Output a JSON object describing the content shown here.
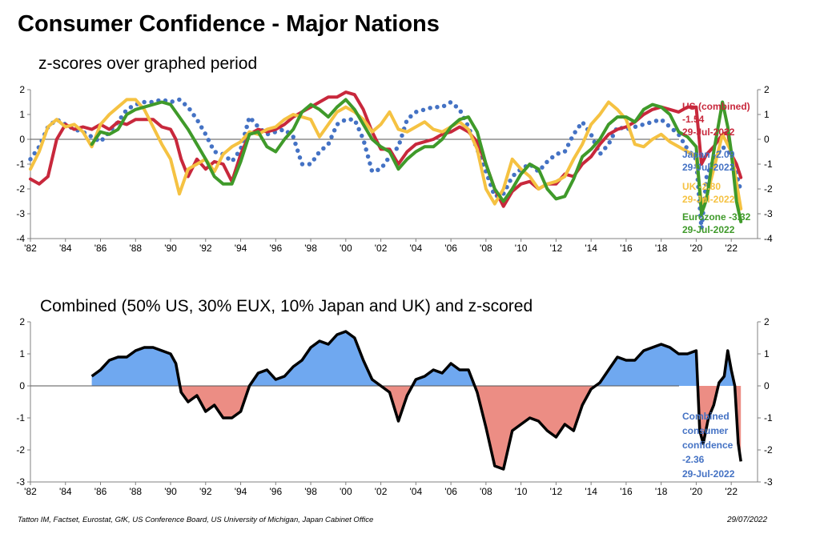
{
  "header": {
    "title": "Consumer Confidence - Major Nations"
  },
  "footer": {
    "source": "Tatton IM, Factset, Eurostat, GfK, US Conference Board, US University of Michigan, Japan Cabinet Office",
    "date": "29/07/2022"
  },
  "colors": {
    "us": "#c8283c",
    "japan": "#4472c4",
    "uk": "#f5c242",
    "eurozone": "#3f9a2a",
    "positive_fill": "#6fa8f0",
    "negative_fill": "#ec8d84",
    "combined_line": "#000000"
  },
  "chart_data": [
    {
      "type": "line",
      "title": "z-scores over graphed period",
      "x_tick_labels": [
        "'82",
        "'84",
        "'86",
        "'88",
        "'90",
        "'92",
        "'94",
        "'96",
        "'98",
        "'00",
        "'02",
        "'04",
        "'06",
        "'08",
        "'10",
        "'12",
        "'14",
        "'16",
        "'18",
        "'20",
        "'22"
      ],
      "xlim": [
        1982,
        2023.5
      ],
      "ylim": [
        -4,
        2
      ],
      "y_ticks": [
        2,
        1,
        0,
        -1,
        -2,
        -3,
        -4
      ],
      "zero_line": true,
      "series": [
        {
          "key": "us",
          "style": "solid",
          "label": "US (combined)",
          "value_label": "-1.54",
          "date_label": "29-Jul-2022",
          "x": [
            1982.0,
            1982.5,
            1983.0,
            1983.5,
            1984.0,
            1984.5,
            1985.0,
            1985.5,
            1986.0,
            1986.5,
            1987.0,
            1987.5,
            1988.0,
            1988.5,
            1989.0,
            1989.5,
            1990.0,
            1990.3,
            1990.6,
            1991.0,
            1991.5,
            1992.0,
            1992.5,
            1993.0,
            1993.5,
            1994.0,
            1994.5,
            1995.0,
            1995.5,
            1996.0,
            1996.5,
            1997.0,
            1997.5,
            1998.0,
            1998.5,
            1999.0,
            1999.5,
            2000.0,
            2000.5,
            2001.0,
            2001.5,
            2002.0,
            2002.5,
            2003.0,
            2003.5,
            2004.0,
            2004.5,
            2005.0,
            2005.5,
            2006.0,
            2006.5,
            2007.0,
            2007.5,
            2008.0,
            2008.5,
            2009.0,
            2009.5,
            2010.0,
            2010.5,
            2011.0,
            2011.5,
            2012.0,
            2012.5,
            2013.0,
            2013.5,
            2014.0,
            2014.5,
            2015.0,
            2015.5,
            2016.0,
            2016.5,
            2017.0,
            2017.5,
            2018.0,
            2018.5,
            2019.0,
            2019.5,
            2020.0,
            2020.3,
            2020.6,
            2021.0,
            2021.5,
            2021.8,
            2022.0,
            2022.3,
            2022.55
          ],
          "y": [
            -1.6,
            -1.8,
            -1.5,
            0.0,
            0.6,
            0.4,
            0.5,
            0.4,
            0.6,
            0.4,
            0.7,
            0.6,
            0.8,
            0.8,
            0.8,
            0.5,
            0.4,
            0.0,
            -0.8,
            -1.5,
            -0.8,
            -1.2,
            -0.9,
            -1.0,
            -1.7,
            -0.6,
            0.2,
            0.4,
            0.3,
            0.4,
            0.6,
            0.9,
            1.1,
            1.3,
            1.5,
            1.7,
            1.7,
            1.9,
            1.8,
            1.2,
            0.3,
            -0.4,
            -0.4,
            -1.0,
            -0.5,
            -0.2,
            -0.1,
            0.0,
            0.2,
            0.3,
            0.5,
            0.3,
            -0.1,
            -1.0,
            -2.0,
            -2.7,
            -2.1,
            -1.8,
            -1.7,
            -2.0,
            -1.8,
            -1.8,
            -1.4,
            -1.5,
            -1.0,
            -0.7,
            -0.2,
            0.2,
            0.4,
            0.5,
            0.7,
            1.0,
            1.2,
            1.3,
            1.2,
            1.1,
            1.3,
            1.3,
            -1.0,
            -0.6,
            -0.3,
            0.2,
            0.3,
            -0.6,
            -1.0,
            -1.54
          ]
        },
        {
          "key": "japan",
          "style": "dotted",
          "label": "Japan -2.09",
          "date_label": "29-Jul-2022",
          "x": [
            1982.0,
            1982.5,
            1983.0,
            1983.5,
            1984.0,
            1984.5,
            1985.0,
            1985.5,
            1986.0,
            1986.5,
            1987.0,
            1987.5,
            1988.0,
            1988.5,
            1989.0,
            1989.5,
            1990.0,
            1990.5,
            1991.0,
            1991.5,
            1992.0,
            1992.5,
            1993.0,
            1993.5,
            1994.0,
            1994.5,
            1995.0,
            1995.5,
            1996.0,
            1996.5,
            1997.0,
            1997.5,
            1998.0,
            1998.5,
            1999.0,
            1999.5,
            2000.0,
            2000.5,
            2001.0,
            2001.5,
            2002.0,
            2002.5,
            2003.0,
            2003.5,
            2004.0,
            2004.5,
            2005.0,
            2005.5,
            2006.0,
            2006.5,
            2007.0,
            2007.5,
            2008.0,
            2008.5,
            2009.0,
            2009.5,
            2010.0,
            2010.5,
            2011.0,
            2011.5,
            2012.0,
            2012.5,
            2013.0,
            2013.5,
            2014.0,
            2014.5,
            2015.0,
            2015.5,
            2016.0,
            2016.5,
            2017.0,
            2017.5,
            2018.0,
            2018.5,
            2019.0,
            2019.5,
            2020.0,
            2020.3,
            2020.6,
            2021.0,
            2021.5,
            2022.0,
            2022.55
          ],
          "y": [
            -0.8,
            -0.3,
            0.5,
            0.8,
            0.6,
            0.4,
            0.3,
            0.1,
            -0.1,
            0.3,
            0.7,
            1.2,
            1.4,
            1.5,
            1.5,
            1.6,
            1.5,
            1.6,
            1.3,
            0.8,
            0.2,
            -0.5,
            -0.6,
            -0.9,
            -0.4,
            0.9,
            0.5,
            0.2,
            0.3,
            0.4,
            0.1,
            -1.0,
            -1.0,
            -0.5,
            -0.2,
            0.6,
            0.8,
            0.8,
            0.0,
            -1.3,
            -1.2,
            -0.7,
            -0.3,
            0.8,
            1.1,
            1.2,
            1.3,
            1.3,
            1.5,
            1.2,
            0.5,
            -0.4,
            -1.3,
            -2.3,
            -2.2,
            -1.5,
            -1.2,
            -1.0,
            -1.3,
            -0.9,
            -0.6,
            -0.5,
            0.2,
            0.7,
            0.2,
            -0.6,
            -0.2,
            0.5,
            0.4,
            0.5,
            0.6,
            0.7,
            0.8,
            0.5,
            0.2,
            -0.4,
            -0.8,
            -3.6,
            -1.5,
            -0.8,
            -0.3,
            -0.6,
            -2.09
          ]
        },
        {
          "key": "uk",
          "style": "solid",
          "label": "UK -2.80",
          "date_label": "29-Jul-2022",
          "x": [
            1982.0,
            1982.5,
            1983.0,
            1983.5,
            1984.0,
            1984.5,
            1985.0,
            1985.5,
            1986.0,
            1986.5,
            1987.0,
            1987.5,
            1988.0,
            1988.5,
            1989.0,
            1989.5,
            1990.0,
            1990.5,
            1991.0,
            1991.5,
            1992.0,
            1992.5,
            1993.0,
            1993.5,
            1994.0,
            1994.5,
            1995.0,
            1995.5,
            1996.0,
            1996.5,
            1997.0,
            1997.5,
            1998.0,
            1998.5,
            1999.0,
            1999.5,
            2000.0,
            2000.5,
            2001.0,
            2001.5,
            2002.0,
            2002.5,
            2003.0,
            2003.5,
            2004.0,
            2004.5,
            2005.0,
            2005.5,
            2006.0,
            2006.5,
            2007.0,
            2007.5,
            2008.0,
            2008.5,
            2009.0,
            2009.5,
            2010.0,
            2010.5,
            2011.0,
            2011.5,
            2012.0,
            2012.5,
            2013.0,
            2013.5,
            2014.0,
            2014.5,
            2015.0,
            2015.5,
            2016.0,
            2016.5,
            2017.0,
            2017.5,
            2018.0,
            2018.5,
            2019.0,
            2019.5,
            2020.0,
            2020.3,
            2020.6,
            2021.0,
            2021.5,
            2022.0,
            2022.55
          ],
          "y": [
            -1.2,
            -0.5,
            0.5,
            0.8,
            0.5,
            0.6,
            0.3,
            -0.3,
            0.6,
            1.0,
            1.3,
            1.6,
            1.6,
            1.2,
            0.5,
            -0.2,
            -0.8,
            -2.2,
            -1.2,
            -1.0,
            -0.8,
            -1.3,
            -0.6,
            -0.3,
            -0.1,
            0.3,
            0.2,
            0.4,
            0.5,
            0.8,
            1.0,
            0.9,
            0.8,
            0.1,
            0.6,
            1.1,
            1.3,
            1.1,
            0.8,
            0.3,
            0.6,
            1.1,
            0.4,
            0.3,
            0.5,
            0.7,
            0.4,
            0.3,
            0.5,
            0.7,
            0.4,
            -0.4,
            -2.0,
            -2.6,
            -2.0,
            -0.8,
            -1.2,
            -1.5,
            -2.0,
            -1.8,
            -1.7,
            -1.5,
            -0.8,
            -0.2,
            0.6,
            1.0,
            1.5,
            1.2,
            0.8,
            -0.2,
            -0.3,
            0.0,
            0.2,
            -0.1,
            -0.3,
            -0.5,
            -0.7,
            -2.6,
            -2.3,
            -1.2,
            0.2,
            -0.5,
            -2.8
          ]
        },
        {
          "key": "eurozone",
          "style": "solid",
          "label": "Eurozone -3.32",
          "date_label": "29-Jul-2022",
          "x": [
            1985.5,
            1986.0,
            1986.5,
            1987.0,
            1987.5,
            1988.0,
            1988.5,
            1989.0,
            1989.5,
            1990.0,
            1990.5,
            1991.0,
            1991.5,
            1992.0,
            1992.5,
            1993.0,
            1993.5,
            1994.0,
            1994.5,
            1995.0,
            1995.5,
            1996.0,
            1996.5,
            1997.0,
            1997.5,
            1998.0,
            1998.5,
            1999.0,
            1999.5,
            2000.0,
            2000.5,
            2001.0,
            2001.5,
            2002.0,
            2002.5,
            2003.0,
            2003.5,
            2004.0,
            2004.5,
            2005.0,
            2005.5,
            2006.0,
            2006.5,
            2007.0,
            2007.5,
            2008.0,
            2008.5,
            2009.0,
            2009.5,
            2010.0,
            2010.5,
            2011.0,
            2011.5,
            2012.0,
            2012.5,
            2013.0,
            2013.5,
            2014.0,
            2014.5,
            2015.0,
            2015.5,
            2016.0,
            2016.5,
            2017.0,
            2017.5,
            2018.0,
            2018.5,
            2019.0,
            2019.5,
            2020.0,
            2020.3,
            2020.6,
            2021.0,
            2021.5,
            2021.8,
            2022.0,
            2022.3,
            2022.55
          ],
          "y": [
            -0.2,
            0.3,
            0.2,
            0.4,
            1.0,
            1.2,
            1.3,
            1.4,
            1.5,
            1.4,
            0.9,
            0.4,
            -0.2,
            -0.8,
            -1.5,
            -1.8,
            -1.8,
            -0.9,
            0.2,
            0.3,
            -0.3,
            -0.5,
            0.0,
            0.4,
            1.1,
            1.4,
            1.2,
            0.9,
            1.3,
            1.6,
            1.2,
            0.6,
            0.0,
            -0.3,
            -0.5,
            -1.2,
            -0.8,
            -0.5,
            -0.3,
            -0.3,
            0.0,
            0.5,
            0.8,
            0.9,
            0.3,
            -1.0,
            -2.0,
            -2.5,
            -2.0,
            -1.4,
            -1.0,
            -1.2,
            -2.0,
            -2.4,
            -2.3,
            -1.6,
            -0.7,
            -0.4,
            0.0,
            0.6,
            0.9,
            0.9,
            0.7,
            1.2,
            1.4,
            1.3,
            1.0,
            0.3,
            0.1,
            -0.3,
            -3.0,
            -2.4,
            -0.5,
            1.5,
            0.5,
            -0.5,
            -2.5,
            -3.32
          ]
        }
      ]
    },
    {
      "type": "area",
      "title": "Combined (50% US, 30% EUX, 10% Japan and UK) and z-scored",
      "x_tick_labels": [
        "'82",
        "'84",
        "'86",
        "'88",
        "'90",
        "'92",
        "'94",
        "'96",
        "'98",
        "'00",
        "'02",
        "'04",
        "'06",
        "'08",
        "'10",
        "'12",
        "'14",
        "'16",
        "'18",
        "'20",
        "'22"
      ],
      "xlim": [
        1982,
        2023.5
      ],
      "ylim": [
        -3,
        2
      ],
      "y_ticks": [
        2,
        1,
        0,
        -1,
        -2,
        -3
      ],
      "zero_line": true,
      "series": [
        {
          "key": "combined",
          "label": "Combined consumer confidence",
          "value_label": "-2.36",
          "date_label": "29-Jul-2022",
          "label_lines": [
            "Combined",
            "consumer",
            "confidence",
            "-2.36",
            "29-Jul-2022"
          ],
          "x": [
            1985.5,
            1986.0,
            1986.5,
            1987.0,
            1987.5,
            1988.0,
            1988.5,
            1989.0,
            1989.5,
            1990.0,
            1990.3,
            1990.6,
            1991.0,
            1991.5,
            1992.0,
            1992.5,
            1993.0,
            1993.5,
            1994.0,
            1994.5,
            1995.0,
            1995.5,
            1996.0,
            1996.5,
            1997.0,
            1997.5,
            1998.0,
            1998.5,
            1999.0,
            1999.5,
            2000.0,
            2000.5,
            2001.0,
            2001.5,
            2002.0,
            2002.5,
            2003.0,
            2003.5,
            2004.0,
            2004.5,
            2005.0,
            2005.5,
            2006.0,
            2006.5,
            2007.0,
            2007.5,
            2008.0,
            2008.5,
            2009.0,
            2009.5,
            2010.0,
            2010.5,
            2011.0,
            2011.5,
            2012.0,
            2012.5,
            2013.0,
            2013.5,
            2014.0,
            2014.5,
            2015.0,
            2015.5,
            2016.0,
            2016.5,
            2017.0,
            2017.5,
            2018.0,
            2018.5,
            2019.0,
            2019.5,
            2020.0,
            2020.2,
            2020.4,
            2020.7,
            2021.0,
            2021.3,
            2021.6,
            2021.8,
            2022.0,
            2022.2,
            2022.4,
            2022.55
          ],
          "y": [
            0.3,
            0.5,
            0.8,
            0.9,
            0.9,
            1.1,
            1.2,
            1.2,
            1.1,
            1.0,
            0.7,
            -0.2,
            -0.5,
            -0.3,
            -0.8,
            -0.6,
            -1.0,
            -1.0,
            -0.8,
            0.0,
            0.4,
            0.5,
            0.2,
            0.3,
            0.6,
            0.8,
            1.2,
            1.4,
            1.3,
            1.6,
            1.7,
            1.5,
            0.8,
            0.2,
            0.0,
            -0.2,
            -1.1,
            -0.3,
            0.2,
            0.3,
            0.5,
            0.4,
            0.7,
            0.5,
            0.5,
            -0.2,
            -1.3,
            -2.5,
            -2.6,
            -1.4,
            -1.2,
            -1.0,
            -1.1,
            -1.4,
            -1.6,
            -1.2,
            -1.4,
            -0.6,
            -0.1,
            0.1,
            0.5,
            0.9,
            0.8,
            0.8,
            1.1,
            1.2,
            1.3,
            1.2,
            1.0,
            1.0,
            1.1,
            -1.4,
            -1.8,
            -1.0,
            -0.6,
            0.1,
            0.3,
            1.1,
            0.5,
            0.0,
            -1.8,
            -2.36
          ]
        }
      ]
    }
  ]
}
